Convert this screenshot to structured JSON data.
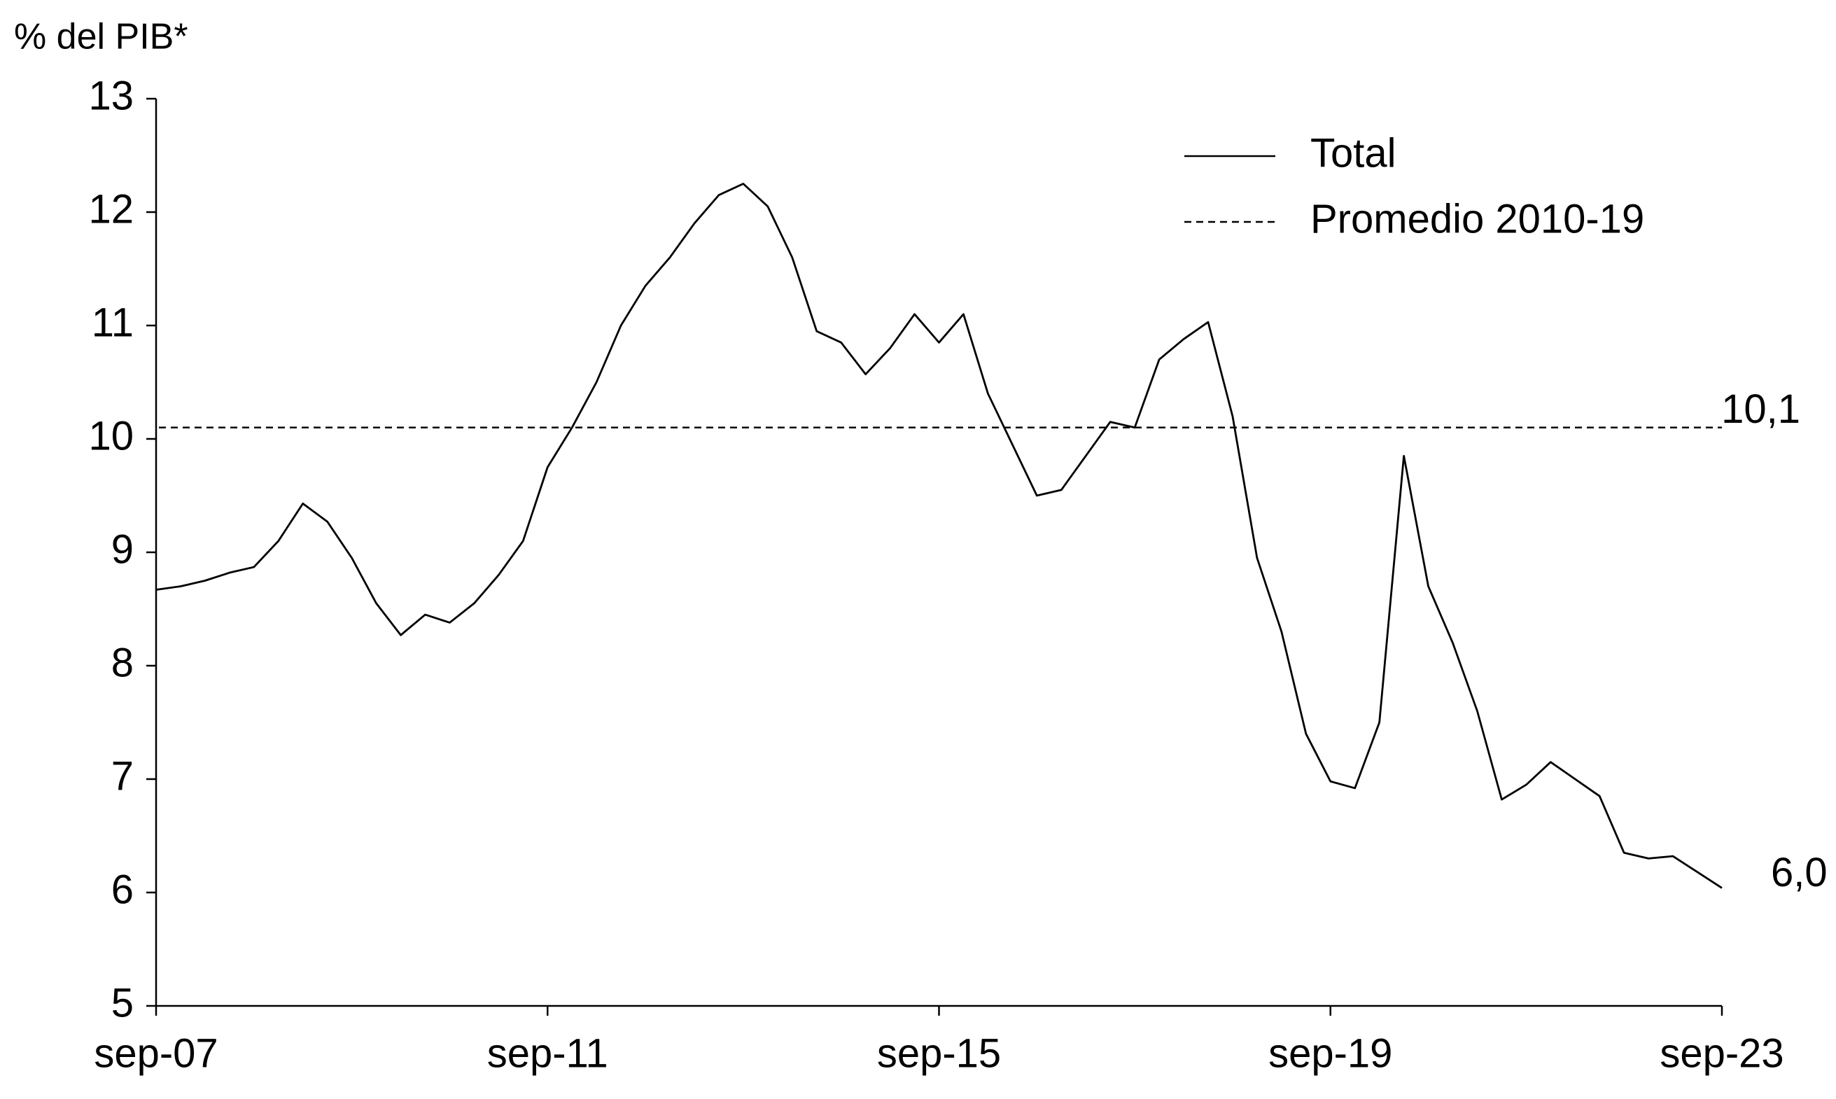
{
  "chart_data": {
    "type": "line",
    "ylabel": "% del PIB*",
    "categories": [
      "sep-07",
      null,
      null,
      null,
      null,
      null,
      null,
      null,
      null,
      null,
      null,
      null,
      null,
      null,
      null,
      null,
      "sep-11",
      null,
      null,
      null,
      null,
      null,
      null,
      null,
      null,
      null,
      null,
      null,
      null,
      null,
      null,
      null,
      "sep-15",
      null,
      null,
      null,
      null,
      null,
      null,
      null,
      null,
      null,
      null,
      null,
      null,
      null,
      null,
      null,
      "sep-19",
      null,
      null,
      null,
      null,
      null,
      null,
      null,
      null,
      null,
      null,
      null,
      null,
      null,
      null,
      null,
      "sep-23"
    ],
    "series": [
      {
        "name": "Total",
        "color": "#000000",
        "values": [
          8.67,
          8.7,
          8.75,
          8.82,
          8.87,
          9.1,
          9.43,
          9.27,
          8.95,
          8.55,
          8.27,
          8.45,
          8.38,
          8.55,
          8.8,
          9.1,
          9.75,
          10.1,
          10.5,
          11.0,
          11.35,
          11.6,
          11.9,
          12.15,
          12.25,
          12.05,
          11.6,
          10.95,
          10.85,
          10.57,
          10.8,
          11.1,
          10.85,
          11.1,
          10.4,
          9.95,
          9.5,
          9.55,
          9.85,
          10.15,
          10.1,
          10.7,
          10.88,
          11.03,
          10.2,
          8.95,
          8.3,
          7.4,
          6.98,
          6.92,
          7.5,
          9.85,
          8.7,
          8.2,
          7.6,
          6.82,
          6.95,
          7.15,
          7.0,
          6.85,
          6.35,
          6.3,
          6.32,
          6.18,
          6.04
        ],
        "value_labels": [
          null,
          null,
          null,
          null,
          null,
          null,
          null,
          null,
          null,
          null,
          null,
          null,
          null,
          null,
          null,
          null,
          null,
          null,
          null,
          null,
          null,
          null,
          null,
          null,
          null,
          null,
          null,
          null,
          null,
          null,
          null,
          null,
          null,
          null,
          null,
          null,
          null,
          null,
          null,
          null,
          null,
          null,
          null,
          null,
          null,
          null,
          null,
          null,
          null,
          null,
          null,
          null,
          null,
          null,
          null,
          null,
          null,
          null,
          null,
          null,
          null,
          null,
          null,
          null,
          "6,0"
        ]
      }
    ],
    "hlines": [
      {
        "name": "Promedio 2010-19",
        "value": 10.1,
        "value_label": "10,1",
        "color": "#000000",
        "style": "dashed"
      }
    ],
    "ylim": [
      5,
      13
    ],
    "yticks": [
      5,
      6,
      7,
      8,
      9,
      10,
      11,
      12,
      13
    ],
    "legend": "upper right"
  }
}
